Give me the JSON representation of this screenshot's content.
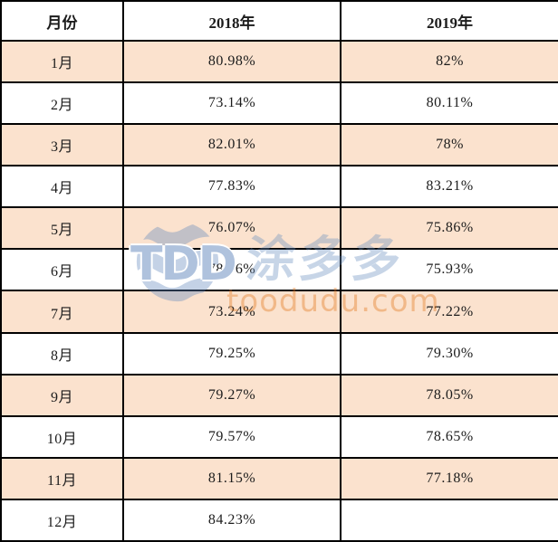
{
  "table": {
    "header": [
      "月份",
      "2018年",
      "2019年"
    ],
    "rows": [
      [
        "1月",
        "80.98%",
        "82%"
      ],
      [
        "2月",
        "73.14%",
        "80.11%"
      ],
      [
        "3月",
        "82.01%",
        "78%"
      ],
      [
        "4月",
        "77.83%",
        "83.21%"
      ],
      [
        "5月",
        "76.07%",
        "75.86%"
      ],
      [
        "6月",
        "78.06%",
        "75.93%"
      ],
      [
        "7月",
        "73.24%",
        "77.22%"
      ],
      [
        "8月",
        "79.25%",
        "79.30%"
      ],
      [
        "9月",
        "79.27%",
        "78.05%"
      ],
      [
        "10月",
        "79.57%",
        "78.65%"
      ],
      [
        "11月",
        "81.15%",
        "77.18%"
      ],
      [
        "12月",
        "84.23%",
        ""
      ]
    ],
    "highlighted_rows": [
      0,
      2,
      4,
      6,
      8,
      10
    ]
  },
  "watermark": {
    "logo_text": "TDD",
    "brand_text": "涂多多",
    "domain_text": "toodudu.com"
  },
  "colors": {
    "row_highlight": "#FBE2CE",
    "header_bg": "#FFFFFF",
    "border": "#000000",
    "text": "#1C1C1C",
    "watermark_blue": "#688CBF5E",
    "watermark_blue_strong": "#6086BC80",
    "watermark_orange": "#E47A2066"
  },
  "chart_data": {
    "type": "table",
    "title": "",
    "categories": [
      "1月",
      "2月",
      "3月",
      "4月",
      "5月",
      "6月",
      "7月",
      "8月",
      "9月",
      "10月",
      "11月",
      "12月"
    ],
    "series": [
      {
        "name": "2018年",
        "values": [
          80.98,
          73.14,
          82.01,
          77.83,
          76.07,
          78.06,
          73.24,
          79.25,
          79.27,
          79.57,
          81.15,
          84.23
        ]
      },
      {
        "name": "2019年",
        "values": [
          82,
          80.11,
          78,
          83.21,
          75.86,
          75.93,
          77.22,
          79.3,
          78.05,
          78.65,
          77.18,
          null
        ]
      }
    ],
    "unit": "%",
    "column_header": "月份"
  }
}
